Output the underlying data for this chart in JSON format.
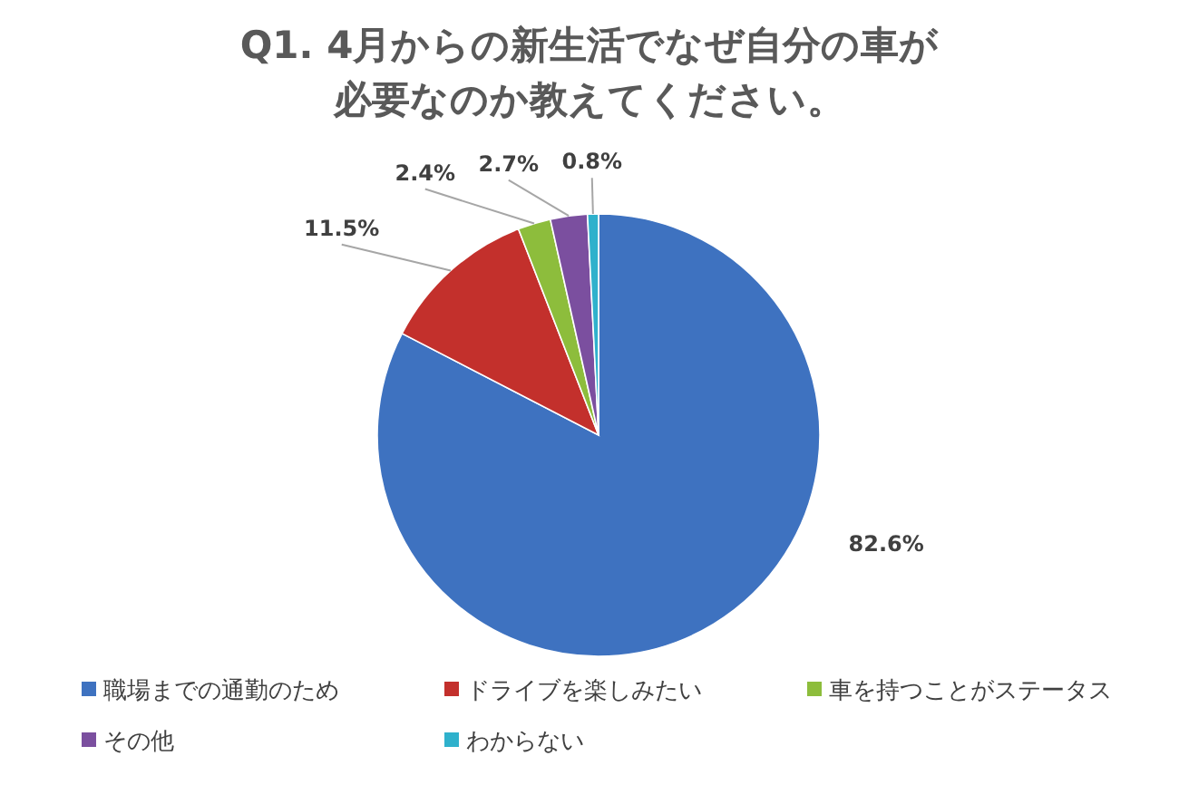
{
  "chart_data": {
    "type": "pie",
    "title": "Q1. 4月からの新生活でなぜ自分の車が必要なのか教えてください。",
    "categories": [
      "職場までの通勤のため",
      "ドライブを楽しみたい",
      "車を持つことがステータス",
      "その他",
      "わからない"
    ],
    "values": [
      82.6,
      11.5,
      2.4,
      2.7,
      0.8
    ],
    "value_labels": [
      "82.6%",
      "11.5%",
      "2.4%",
      "2.7%",
      "0.8%"
    ],
    "colors": [
      "#3e72c0",
      "#c3302c",
      "#8dbd3c",
      "#7b4f9f",
      "#2fb1cc"
    ],
    "legend": "bottom"
  }
}
